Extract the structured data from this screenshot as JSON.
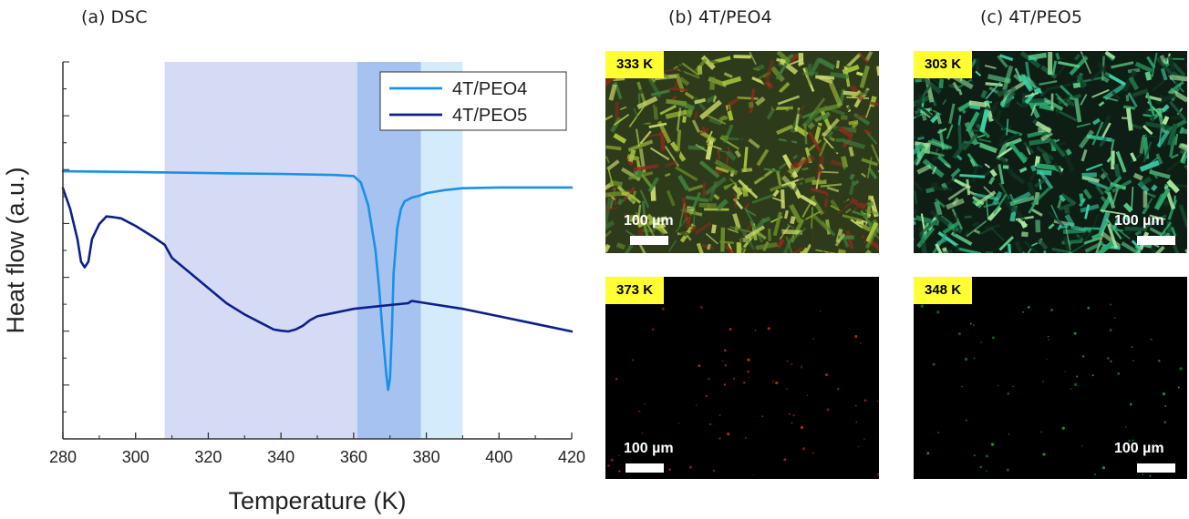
{
  "panels": {
    "a_title": "(a) DSC",
    "b_title": "(b) 4T/PEO4",
    "c_title": "(c) 4T/PEO5"
  },
  "colors": {
    "series_4T_PEO4": "#1a90e8",
    "series_4T_PEO5": "#0d1f8c",
    "band_wide": "#d6dbf5",
    "band_mid": "#a5c2f0",
    "band_light": "#d3ebfb",
    "badge_yellow": "#ffff33"
  },
  "chart_data": {
    "type": "line",
    "title": "(a) DSC",
    "xlabel": "Temperature (K)",
    "ylabel": "Heat flow (a.u.)",
    "xlim": [
      280,
      420
    ],
    "ylim": [
      0,
      1
    ],
    "x_ticks": [
      280,
      300,
      320,
      340,
      360,
      380,
      400,
      420
    ],
    "y_tick_labels_shown": false,
    "legend_position": "top-right",
    "shaded_regions": [
      {
        "x": [
          308,
          390
        ],
        "color": "#d6dbf5"
      },
      {
        "x": [
          361,
          378.5
        ],
        "color": "#a5c2f0"
      },
      {
        "x": [
          378.5,
          390
        ],
        "color": "#d3ebfb"
      }
    ],
    "series": [
      {
        "name": "4T/PEO4",
        "color": "#1a90e8",
        "x": [
          280,
          300,
          320,
          340,
          355,
          360,
          362,
          364,
          366,
          367,
          368,
          369,
          369.5,
          370,
          370.5,
          371,
          372,
          373,
          374,
          375,
          376,
          378,
          380,
          385,
          390,
          400,
          410,
          420
        ],
        "y": [
          0.71,
          0.708,
          0.705,
          0.703,
          0.7,
          0.697,
          0.68,
          0.62,
          0.5,
          0.4,
          0.28,
          0.17,
          0.13,
          0.16,
          0.28,
          0.44,
          0.56,
          0.61,
          0.63,
          0.635,
          0.64,
          0.645,
          0.652,
          0.66,
          0.665,
          0.667,
          0.667,
          0.667
        ]
      },
      {
        "name": "4T/PEO5",
        "color": "#0d1f8c",
        "x": [
          280,
          282,
          284,
          285,
          286,
          287,
          288,
          290,
          292,
          294,
          296,
          300,
          305,
          308,
          310,
          315,
          320,
          325,
          330,
          335,
          338,
          340,
          342,
          344,
          346,
          348,
          350,
          355,
          360,
          365,
          370,
          375,
          376,
          380,
          390,
          400,
          410,
          420
        ],
        "y": [
          0.665,
          0.61,
          0.53,
          0.47,
          0.455,
          0.47,
          0.53,
          0.57,
          0.59,
          0.588,
          0.585,
          0.565,
          0.535,
          0.515,
          0.48,
          0.44,
          0.4,
          0.36,
          0.33,
          0.305,
          0.29,
          0.287,
          0.285,
          0.29,
          0.3,
          0.315,
          0.325,
          0.335,
          0.345,
          0.35,
          0.355,
          0.36,
          0.366,
          0.36,
          0.345,
          0.325,
          0.305,
          0.285
        ]
      }
    ]
  },
  "micrographs": [
    {
      "id": "b-top",
      "temperature": "333 K",
      "scale": "100 µm",
      "state": "crystalline",
      "palette": [
        "#6b8f2a",
        "#a6c23c",
        "#3f7a3a",
        "#8b2b1a",
        "#2d3b1a",
        "#c9d86a",
        "#3aa388"
      ]
    },
    {
      "id": "c-top",
      "temperature": "303 K",
      "scale": "100 µm",
      "state": "crystalline",
      "palette": [
        "#2aa86b",
        "#5fd08a",
        "#1a5a3a",
        "#a8e8a0",
        "#113322",
        "#3ad0a8",
        "#0e1e14"
      ]
    },
    {
      "id": "b-bottom",
      "temperature": "373 K",
      "scale": "100 µm",
      "state": "melt",
      "palette": [
        "#a02a10",
        "#6a1e0c"
      ]
    },
    {
      "id": "c-bottom",
      "temperature": "348 K",
      "scale": "100 µm",
      "state": "melt",
      "palette": [
        "#1f8a2a",
        "#145a1c"
      ]
    }
  ]
}
